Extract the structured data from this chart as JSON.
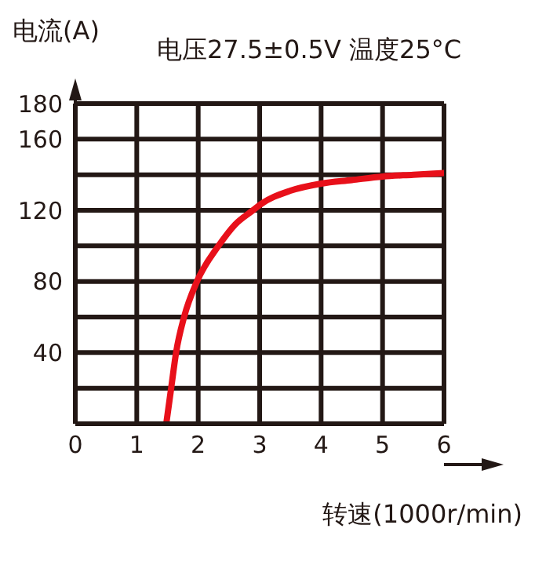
{
  "chart_data": {
    "type": "line",
    "title": "电压27.5±0.5V 温度25°C",
    "xlabel": "转速(1000r/min)",
    "ylabel": "电流(A)",
    "x": [
      1.48,
      1.56,
      1.64,
      1.77,
      1.98,
      2.33,
      2.6,
      2.89,
      3,
      3.5,
      4,
      4.5,
      5,
      5.5,
      6
    ],
    "series": [
      {
        "color": "#e8101a",
        "values": [
          0,
          20,
          40,
          60,
          80,
          100,
          112,
          120,
          123,
          131,
          135,
          137,
          139,
          140,
          141
        ]
      }
    ],
    "xlim": [
      0,
      6
    ],
    "xticks": [
      0,
      1,
      2,
      3,
      4,
      5,
      6
    ],
    "ylim": [
      0,
      180
    ],
    "yticks": [
      {
        "value": 0,
        "label": null
      },
      {
        "value": 20,
        "label": null
      },
      40,
      {
        "value": 60,
        "label": null
      },
      80,
      {
        "value": 100,
        "label": null
      },
      120,
      {
        "value": 140,
        "label": null
      },
      160,
      180
    ],
    "grid": true,
    "marker": "none",
    "line_style": "solid"
  }
}
